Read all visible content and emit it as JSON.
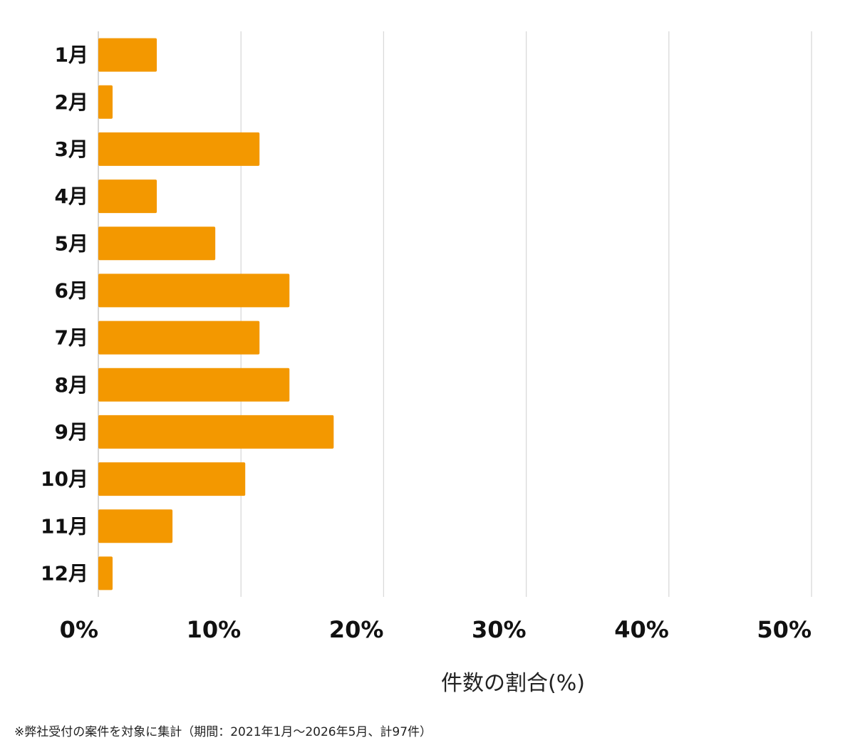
{
  "chart_data": {
    "type": "bar",
    "orientation": "horizontal",
    "categories": [
      "1月",
      "2月",
      "3月",
      "4月",
      "5月",
      "6月",
      "7月",
      "8月",
      "9月",
      "10月",
      "11月",
      "12月"
    ],
    "values": [
      4.1,
      1.0,
      11.3,
      4.1,
      8.2,
      13.4,
      11.3,
      13.4,
      16.5,
      10.3,
      5.2,
      1.0
    ],
    "xlim": [
      0,
      50
    ],
    "xticks": [
      0,
      10,
      20,
      30,
      40,
      50
    ],
    "xtick_labels": [
      "0%",
      "10%",
      "20%",
      "30%",
      "40%",
      "50%"
    ],
    "xlabel": "件数の割合(%)",
    "grid": true,
    "bar_color": "#f39800",
    "grid_color": "#d9d9d9"
  },
  "footnote": "※弊社受付の案件を対象に集計（期間：2021年1月〜2026年5月、計97件）"
}
